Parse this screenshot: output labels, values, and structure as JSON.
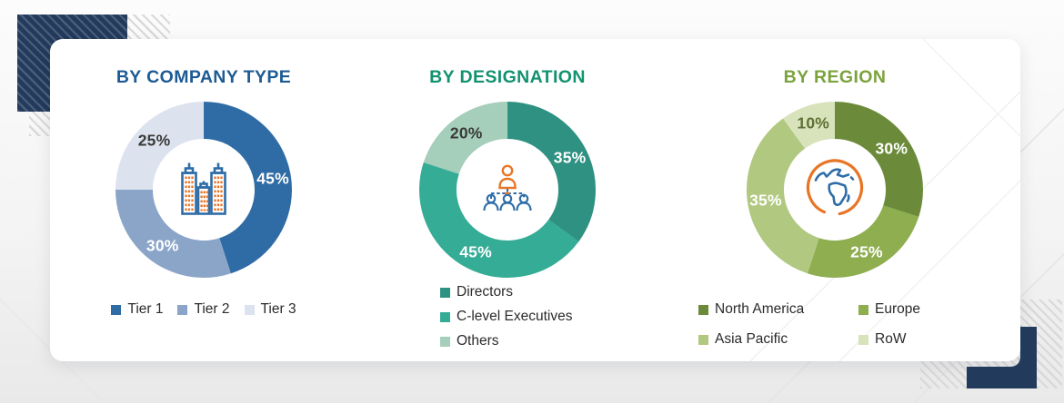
{
  "chart_data": [
    {
      "type": "donut",
      "title": "BY COMPANY TYPE",
      "title_color": "#1E5B94",
      "center_icon": "buildings-icon",
      "legend_layout": "row",
      "start_angle": "top",
      "direction": "clockwise",
      "unit": "%",
      "categories": [
        "Tier 1",
        "Tier 2",
        "Tier 3"
      ],
      "values": [
        45,
        30,
        25
      ],
      "segments": [
        {
          "label": "Tier 1",
          "value": 45,
          "color": "#2F6CA5",
          "value_label_color": "#FFFFFF"
        },
        {
          "label": "Tier 2",
          "value": 30,
          "color": "#8BA5C9",
          "value_label_color": "#FFFFFF"
        },
        {
          "label": "Tier 3",
          "value": 25,
          "color": "#DCE3EF",
          "value_label_color": "#3A3A3A"
        }
      ]
    },
    {
      "type": "donut",
      "title": "BY DESIGNATION",
      "title_color": "#12926E",
      "center_icon": "org-chart-icon",
      "legend_layout": "column",
      "start_angle": "top",
      "direction": "clockwise",
      "unit": "%",
      "categories": [
        "Directors",
        "C-level Executives",
        "Others"
      ],
      "values": [
        35,
        45,
        20
      ],
      "segments": [
        {
          "label": "Directors",
          "value": 35,
          "color": "#2E9182",
          "value_label_color": "#FFFFFF"
        },
        {
          "label": "C-level Executives",
          "value": 45,
          "color": "#35AC96",
          "value_label_color": "#FFFFFF"
        },
        {
          "label": "Others",
          "value": 20,
          "color": "#A5CEBB",
          "value_label_color": "#3A3A3A"
        }
      ]
    },
    {
      "type": "donut",
      "title": "BY REGION",
      "title_color": "#7BA33C",
      "center_icon": "globe-icon",
      "legend_layout": "grid-2col",
      "start_angle": "top",
      "direction": "clockwise",
      "unit": "%",
      "categories": [
        "North America",
        "Europe",
        "Asia Pacific",
        "RoW"
      ],
      "values": [
        30,
        25,
        35,
        10
      ],
      "segments": [
        {
          "label": "North America",
          "value": 30,
          "color": "#6C8B3A",
          "value_label_color": "#FFFFFF"
        },
        {
          "label": "Europe",
          "value": 25,
          "color": "#8EAE50",
          "value_label_color": "#FFFFFF"
        },
        {
          "label": "Asia Pacific",
          "value": 35,
          "color": "#B1C880",
          "value_label_color": "#FFFFFF"
        },
        {
          "label": "RoW",
          "value": 10,
          "color": "#D8E3BB",
          "value_label_color": "#5E7034"
        }
      ]
    }
  ],
  "decor": {
    "accent_navy": "#223A5C",
    "hatch_gray": "#D9D9D9",
    "card_background": "#FFFFFF",
    "icon_stroke_blue": "#2E6DA8",
    "icon_accent_orange": "#E87526",
    "legend_text_color": "#2B2B2B"
  }
}
